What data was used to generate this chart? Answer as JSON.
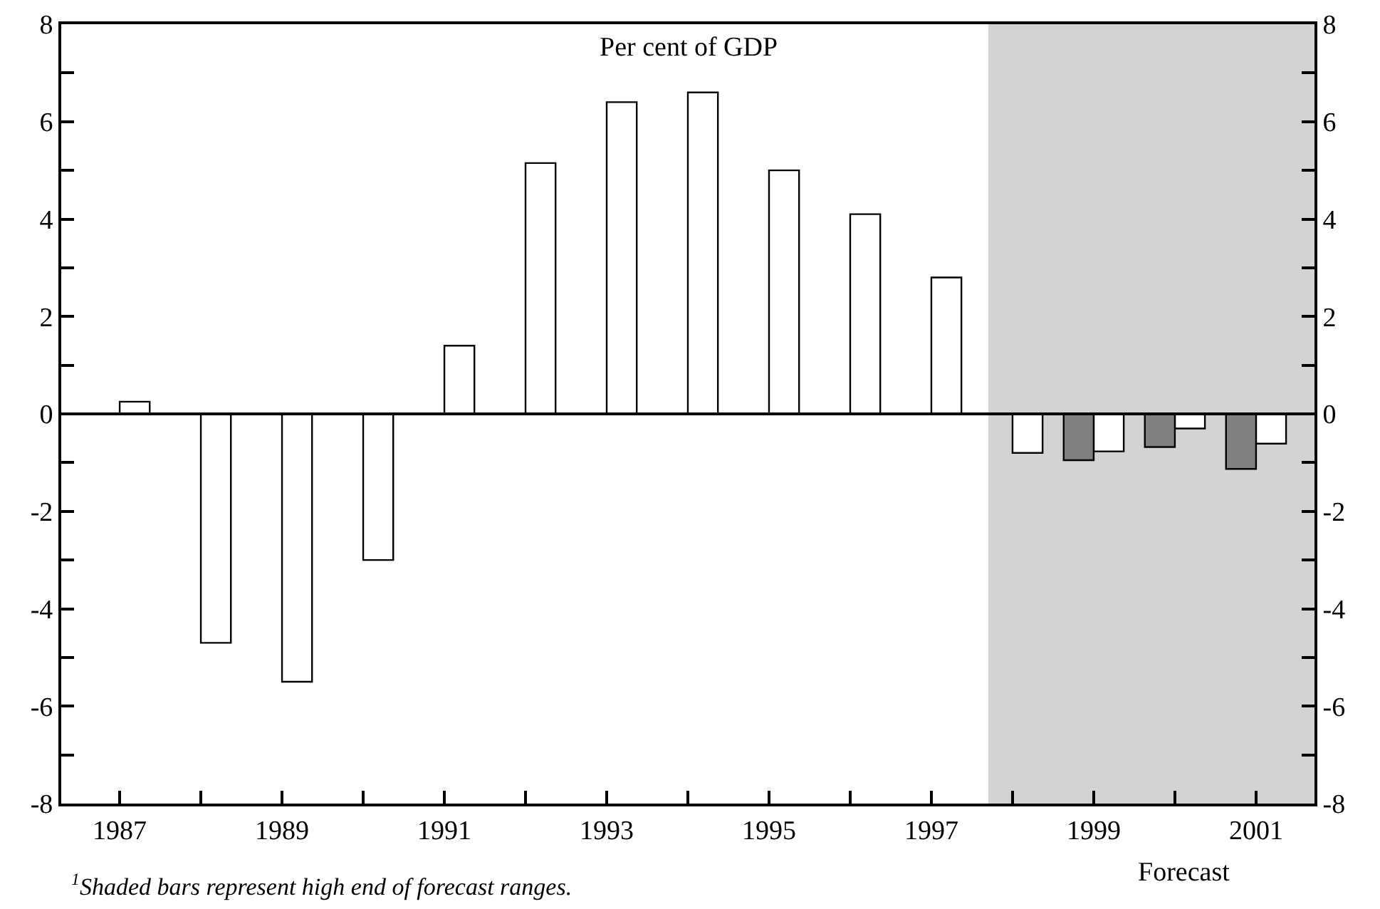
{
  "chart_data": {
    "type": "bar",
    "title": "Per cent of GDP",
    "x": [
      1987,
      1988,
      1989,
      1990,
      1991,
      1992,
      1993,
      1994,
      1995,
      1996,
      1997,
      1998,
      1999,
      2000,
      2001
    ],
    "series": [
      {
        "color": "#ffffff",
        "values": [
          0.25,
          -4.7,
          -5.5,
          -3.0,
          1.4,
          5.15,
          6.4,
          6.6,
          5.0,
          4.1,
          2.8,
          -0.8,
          -0.77,
          -0.3,
          -0.61
        ]
      },
      {
        "color": "#808080",
        "x": [
          1999,
          2000,
          2001
        ],
        "values": [
          -0.95,
          -0.68,
          -1.13
        ]
      }
    ],
    "xlim": [
      1986.28,
      2001.72
    ],
    "xticks": [
      1987,
      {
        "value": 1988,
        "label": null
      },
      1989,
      {
        "value": 1990,
        "label": null
      },
      1991,
      {
        "value": 1992,
        "label": null
      },
      1993,
      {
        "value": 1994,
        "label": null
      },
      1995,
      {
        "value": 1996,
        "label": null
      },
      1997,
      {
        "value": 1998,
        "label": null
      },
      1999,
      {
        "value": 2000,
        "label": null
      },
      2001
    ],
    "ylim": [
      -8,
      8
    ],
    "yticks": [
      -8,
      {
        "value": -7,
        "label": null
      },
      -6,
      {
        "value": -5,
        "label": null
      },
      -4,
      {
        "value": -3,
        "label": null
      },
      -2,
      {
        "value": -1,
        "label": null
      },
      0,
      {
        "value": 1,
        "label": null
      },
      2,
      {
        "value": 3,
        "label": null
      },
      4,
      {
        "value": 5,
        "label": null
      },
      6,
      {
        "value": 7,
        "label": null
      },
      8
    ],
    "y2lim": [
      -8,
      8
    ],
    "y2ticks": [
      -8,
      {
        "value": -7,
        "label": null
      },
      -6,
      {
        "value": -5,
        "label": null
      },
      -4,
      {
        "value": -3,
        "label": null
      },
      -2,
      {
        "value": -1,
        "label": null
      },
      0,
      {
        "value": 1,
        "label": null
      },
      2,
      {
        "value": 3,
        "label": null
      },
      4,
      {
        "value": 5,
        "label": null
      },
      6,
      {
        "value": 7,
        "label": null
      },
      8
    ],
    "bands": [
      {
        "axis": "x",
        "from": 1997.7,
        "to": 2001.72,
        "label": "Forecast",
        "color": "#d3d3d3"
      }
    ],
    "annotations": [
      "$^{1}$Shaded bars represent high end of forecast ranges."
    ],
    "ref_lines": [
      {
        "axis": "y",
        "value": 0,
        "color": "#000000"
      }
    ],
    "grid": false
  }
}
